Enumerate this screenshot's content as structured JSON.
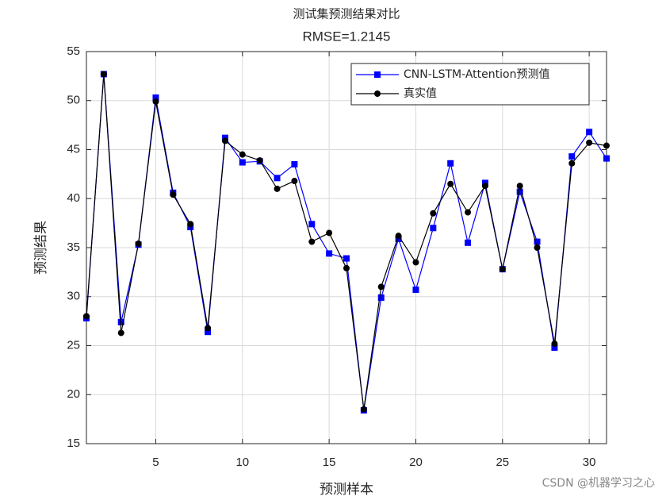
{
  "chart_data": {
    "type": "line",
    "title": "测试集预测结果对比",
    "subtitle": "RMSE=1.2145",
    "x_label": "预测样本",
    "y_label": "预测结果",
    "watermark": "CSDN @机器学习之心",
    "x": [
      1,
      2,
      3,
      4,
      5,
      6,
      7,
      8,
      9,
      10,
      11,
      12,
      13,
      14,
      15,
      16,
      17,
      18,
      19,
      20,
      21,
      22,
      23,
      24,
      25,
      26,
      27,
      28,
      29,
      30,
      31
    ],
    "series": [
      {
        "name": "CNN-LSTM-Attention预测值",
        "color": "#0000ff",
        "marker": "square",
        "values": [
          27.8,
          52.7,
          27.4,
          35.3,
          50.3,
          40.6,
          37.1,
          26.4,
          46.2,
          43.7,
          43.8,
          42.1,
          43.5,
          37.4,
          34.4,
          33.9,
          18.4,
          29.9,
          35.9,
          30.7,
          37.0,
          43.6,
          35.5,
          41.6,
          32.8,
          40.7,
          35.6,
          24.8,
          44.3,
          46.8,
          44.1
        ]
      },
      {
        "name": "真实值",
        "color": "#000000",
        "marker": "circle",
        "values": [
          28.0,
          52.7,
          26.3,
          35.4,
          49.9,
          40.4,
          37.4,
          26.8,
          45.9,
          44.5,
          43.9,
          41.0,
          41.8,
          35.6,
          36.5,
          32.9,
          18.5,
          31.0,
          36.2,
          33.5,
          38.5,
          41.5,
          38.6,
          41.3,
          32.8,
          41.3,
          35.0,
          25.2,
          43.6,
          45.7,
          45.4
        ]
      }
    ],
    "xlim": [
      1,
      31
    ],
    "xticks": [
      5,
      10,
      15,
      20,
      25,
      30
    ],
    "ylim": [
      15,
      55
    ],
    "yticks": [
      15,
      20,
      25,
      30,
      35,
      40,
      45,
      50,
      55
    ],
    "grid": true,
    "legend_position": "upper-right"
  }
}
